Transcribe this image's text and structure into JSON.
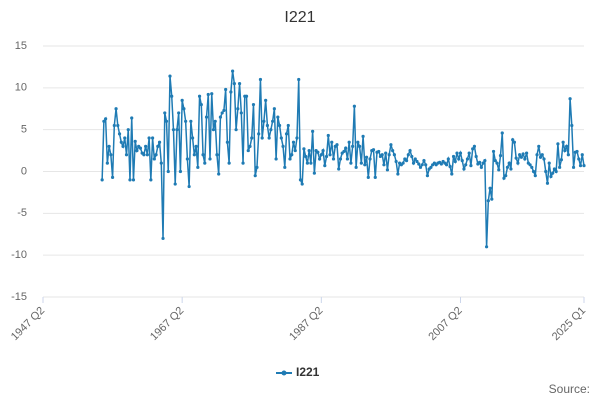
{
  "chart_data": {
    "type": "line",
    "title": "I221",
    "source": "Source:",
    "categories": [
      "1947 Q2",
      null,
      null,
      null,
      null,
      null,
      null,
      null,
      null,
      null,
      null,
      null,
      null,
      null,
      null,
      null,
      null,
      null,
      null,
      null,
      null,
      null,
      null,
      null,
      null,
      null,
      null,
      null,
      null,
      null,
      null,
      null,
      null,
      null,
      null,
      null,
      null,
      null,
      null,
      null,
      null,
      null,
      null,
      null,
      null,
      null,
      null,
      null,
      null,
      null,
      null,
      null,
      null,
      null,
      null,
      null,
      null,
      null,
      null,
      null,
      null,
      null,
      null,
      null,
      null,
      null,
      null,
      null,
      null,
      null,
      null,
      null,
      null,
      null,
      null,
      null,
      null,
      null,
      null,
      null,
      "1967 Q2",
      null,
      null,
      null,
      null,
      null,
      null,
      null,
      null,
      null,
      null,
      null,
      null,
      null,
      null,
      null,
      null,
      null,
      null,
      null,
      null,
      null,
      null,
      null,
      null,
      null,
      null,
      null,
      null,
      null,
      null,
      null,
      null,
      null,
      null,
      null,
      null,
      null,
      null,
      null,
      null,
      null,
      null,
      null,
      null,
      null,
      null,
      null,
      null,
      null,
      null,
      null,
      null,
      null,
      null,
      null,
      null,
      null,
      null,
      null,
      null,
      null,
      null,
      null,
      null,
      null,
      null,
      null,
      null,
      null,
      null,
      null,
      null,
      null,
      null,
      null,
      null,
      null,
      null,
      null,
      "1987 Q2",
      null,
      null,
      null,
      null,
      null,
      null,
      null,
      null,
      null,
      null,
      null,
      null,
      null,
      null,
      null,
      null,
      null,
      null,
      null,
      null,
      null,
      null,
      null,
      null,
      null,
      null,
      null,
      null,
      null,
      null,
      null,
      null,
      null,
      null,
      null,
      null,
      null,
      null,
      null,
      null,
      null,
      null,
      null,
      null,
      null,
      null,
      null,
      null,
      null,
      null,
      null,
      null,
      null,
      null,
      null,
      null,
      null,
      null,
      null,
      null,
      null,
      null,
      null,
      null,
      null,
      null,
      null,
      null,
      null,
      null,
      null,
      null,
      null,
      null,
      null,
      null,
      null,
      null,
      null,
      "2007 Q2",
      null,
      null,
      null,
      null,
      null,
      null,
      null,
      null,
      null,
      null,
      null,
      null,
      null,
      null,
      null,
      null,
      null,
      null,
      null,
      null,
      null,
      null,
      null,
      null,
      null,
      null,
      null,
      null,
      null,
      null,
      null,
      null,
      null,
      null,
      null,
      null,
      null,
      null,
      null,
      null,
      null,
      null,
      null,
      null,
      null,
      null,
      null,
      null,
      null,
      null,
      null,
      null,
      null,
      null,
      null,
      null,
      null,
      null,
      null,
      null,
      null,
      null,
      null,
      null,
      null,
      null,
      null,
      null,
      null,
      null,
      "2025 Q1"
    ],
    "series": [
      {
        "name": "I221",
        "color": "#1f7bb4",
        "values": [
          null,
          null,
          null,
          null,
          null,
          null,
          null,
          null,
          null,
          null,
          null,
          null,
          null,
          null,
          null,
          null,
          null,
          null,
          null,
          null,
          null,
          null,
          null,
          null,
          null,
          null,
          null,
          null,
          null,
          null,
          null,
          null,
          null,
          null,
          -1,
          6,
          6.3,
          1,
          3,
          2,
          -0.7,
          5.5,
          7.5,
          5.5,
          4.5,
          3.5,
          3,
          4,
          2,
          5,
          -1,
          6.4,
          -1,
          3.6,
          2.5,
          3,
          2.8,
          2.2,
          2,
          3,
          2,
          4,
          -1,
          4,
          1.5,
          2,
          3,
          3.5,
          1,
          -8,
          7,
          6,
          0,
          11.4,
          9,
          5,
          -1.5,
          5,
          7,
          0,
          8.5,
          7.5,
          6,
          1.5,
          -1.8,
          6,
          4,
          2,
          3,
          0.5,
          9,
          8,
          2,
          1,
          6.5,
          9.2,
          1.5,
          9.3,
          5,
          6,
          2,
          -0.3,
          6.5,
          7,
          7.3,
          9.8,
          3.5,
          1,
          9.5,
          12,
          10.5,
          5,
          7.5,
          10.5,
          7,
          1,
          9,
          9,
          2.5,
          3,
          4,
          8,
          -0.5,
          0.5,
          4.5,
          11,
          4,
          6,
          8.5,
          5.5,
          4,
          5,
          6,
          7.5,
          1.5,
          6.5,
          5.5,
          4,
          3,
          0.5,
          4.5,
          5.5,
          1.5,
          2,
          3.5,
          2.5,
          4,
          11,
          -1,
          -1.5,
          2.7,
          1.8,
          1,
          2.5,
          1,
          4.8,
          -0.2,
          2.5,
          2.3,
          1.5,
          2,
          2.5,
          0.7,
          1.8,
          4.3,
          2,
          3.5,
          1.5,
          3,
          3.2,
          0.3,
          1.5,
          2.2,
          2.4,
          2.8,
          1.5,
          3.5,
          1,
          3,
          7.8,
          0.5,
          3.5,
          3,
          1,
          4.2,
          0.8,
          1.7,
          -0.7,
          1.5,
          2.5,
          2.6,
          -0.7,
          2.3,
          2.4,
          1.8,
          2,
          0.8,
          2.2,
          0.2,
          2,
          3.2,
          2.5,
          2,
          1.2,
          -0.3,
          1,
          0.8,
          1,
          1.5,
          1.3,
          2,
          2.5,
          1.8,
          1,
          1.5,
          1.2,
          0.9,
          0.5,
          0.8,
          1.3,
          0.8,
          -0.5,
          0.3,
          0.5,
          0.8,
          1,
          0.8,
          1,
          1.1,
          0.9,
          1.2,
          1,
          0.8,
          1.5,
          0.6,
          -0.3,
          1.8,
          1.2,
          2.2,
          1.5,
          2.2,
          1.3,
          0.3,
          0.8,
          1.5,
          2.2,
          0.7,
          2.7,
          3,
          1.8,
          0.9,
          1.1,
          0.5,
          1,
          1.3,
          -9,
          -3.5,
          -2,
          -3.3,
          2.4,
          1.3,
          1,
          0.2,
          1.9,
          4.6,
          -0.8,
          -0.5,
          0.5,
          1,
          0.3,
          3.8,
          3.5,
          1.6,
          1,
          2,
          1.7,
          2.1,
          1.5,
          2.2,
          1,
          0.8,
          0.5,
          0,
          -0.5,
          2,
          3,
          1.7,
          2,
          1.5,
          0,
          -1.4,
          1,
          -0.6,
          -0.2,
          0.3,
          0,
          3.3,
          0.5,
          1.4,
          3.5,
          2.5,
          3,
          2,
          8.7,
          5.5,
          0.5,
          2.3,
          2.4,
          1.5,
          0.7,
          2,
          0.7
        ]
      }
    ],
    "ylim": [
      -15,
      15
    ],
    "yticks": [
      -15,
      -10,
      -5,
      0,
      5,
      10,
      15
    ],
    "grid": true
  }
}
